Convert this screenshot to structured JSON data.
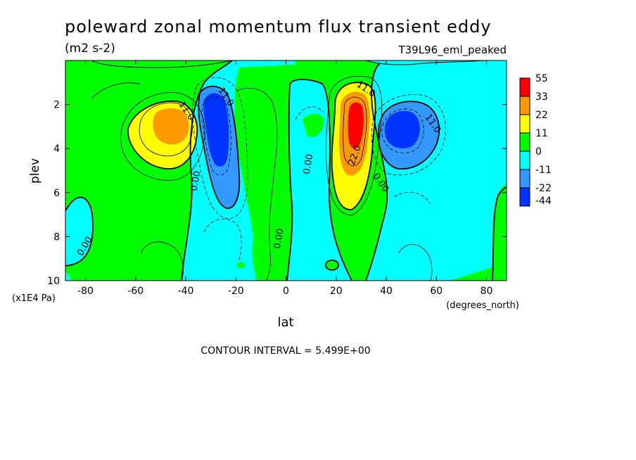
{
  "chart_data": {
    "type": "heatmap",
    "title": "poleward zonal momentum flux transient eddy",
    "subtitle": "(m2 s-2)",
    "run_label": "T39L96_eml_peaked",
    "xlabel": "lat",
    "x_units": "(degrees_north)",
    "ylabel": "plev",
    "y_units": "(x1E4 Pa)",
    "xlim": [
      -88,
      88
    ],
    "ylim": [
      10,
      0
    ],
    "x_ticks": [
      -80,
      -60,
      -40,
      -20,
      0,
      20,
      40,
      60,
      80
    ],
    "y_ticks": [
      2,
      4,
      6,
      8,
      10
    ],
    "contour_interval_text": "CONTOUR INTERVAL = 5.499E+00",
    "contour_labels": [
      "11.0",
      "11.0",
      "0.00",
      "0.00",
      "0.00",
      "11.0",
      "22.0",
      "0.00",
      "11.0",
      "0.00"
    ],
    "colorbar": {
      "levels": [
        "55",
        "33",
        "22",
        "11",
        "0",
        "-11",
        "-22",
        "-44"
      ],
      "colors": [
        "#ff0000",
        "#ff9900",
        "#ffff00",
        "#00ff00",
        "#00ffff",
        "#3399ff",
        "#0033ff"
      ]
    },
    "features": [
      {
        "name": "SH positive max",
        "lat": -45,
        "plev": 3.0,
        "value": 30
      },
      {
        "name": "SH negative min",
        "lat": -26,
        "plev": 3.5,
        "value": -25
      },
      {
        "name": "NH positive max",
        "lat": 27,
        "plev": 2.8,
        "value": 45
      },
      {
        "name": "NH negative min",
        "lat": 44,
        "plev": 3.2,
        "value": -30
      }
    ]
  }
}
